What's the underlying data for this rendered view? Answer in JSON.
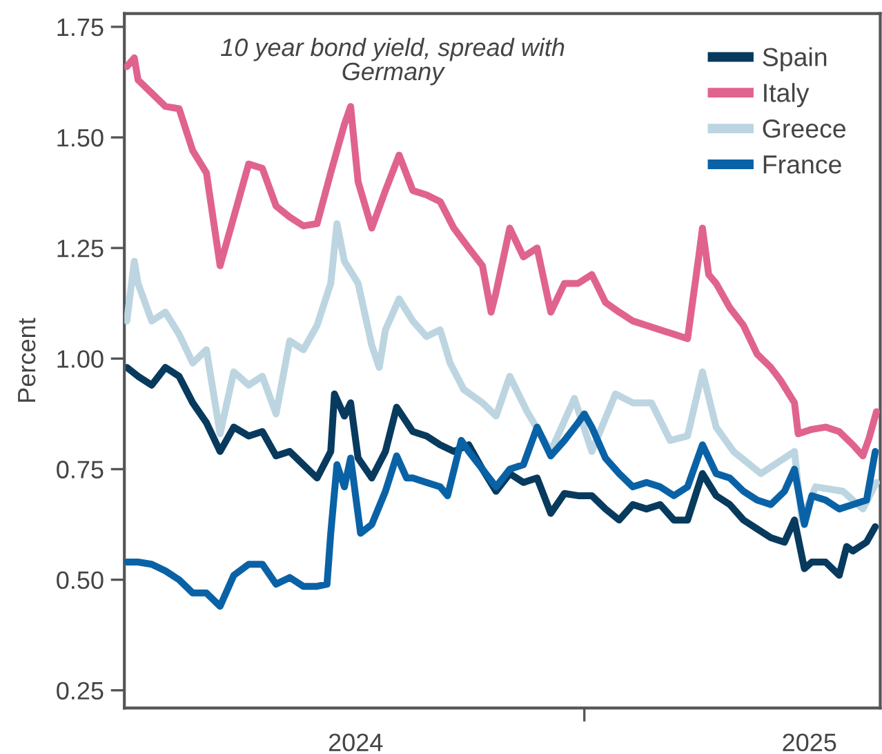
{
  "chart_data": {
    "type": "line",
    "title": "10 year bond yield, spread with Germany",
    "ylabel": "Percent",
    "xlim": [
      "2023-12-28",
      "2025-08-27"
    ],
    "xticks": [
      {
        "value": "2024-07-01",
        "label": "2024"
      },
      {
        "value": "2025-01-01",
        "label": null
      },
      {
        "value": "2025-07-01",
        "label": "2025"
      }
    ],
    "ylim": [
      0.21,
      1.78
    ],
    "yticks": [
      0.25,
      {
        "value": 0.5,
        "label": "0.50"
      },
      0.75,
      {
        "value": 1.0,
        "label": "1.00"
      },
      1.25,
      {
        "value": 1.5,
        "label": "1.50"
      },
      1.75
    ],
    "grid": false,
    "legend": "top right",
    "marker": "none",
    "line_style": "solid",
    "series": [
      {
        "name": "Spain",
        "color": "#083a5e",
        "x": [
          "2023-12-30",
          "2024-01-08",
          "2024-01-19",
          "2024-01-30",
          "2024-02-10",
          "2024-02-21",
          "2024-03-03",
          "2024-03-14",
          "2024-03-25",
          "2024-04-06",
          "2024-04-17",
          "2024-04-28",
          "2024-05-09",
          "2024-05-20",
          "2024-05-31",
          "2024-06-11",
          "2024-06-14",
          "2024-06-22",
          "2024-06-27",
          "2024-07-03",
          "2024-07-14",
          "2024-07-25",
          "2024-08-03",
          "2024-08-16",
          "2024-08-27",
          "2024-09-07",
          "2024-09-18",
          "2024-09-30",
          "2024-10-11",
          "2024-10-22",
          "2024-11-02",
          "2024-11-13",
          "2024-11-24",
          "2024-12-05",
          "2024-12-16",
          "2024-12-27",
          "2025-01-07",
          "2025-01-18",
          "2025-01-29",
          "2025-02-09",
          "2025-02-20",
          "2025-03-03",
          "2025-03-14",
          "2025-03-25",
          "2025-04-06",
          "2025-04-17",
          "2025-04-28",
          "2025-05-09",
          "2025-05-20",
          "2025-05-31",
          "2025-06-11",
          "2025-06-19",
          "2025-06-27",
          "2025-07-03",
          "2025-07-14",
          "2025-07-25",
          "2025-07-31",
          "2025-08-05",
          "2025-08-16",
          "2025-08-23"
        ],
        "values": [
          0.98,
          0.96,
          0.94,
          0.98,
          0.96,
          0.9,
          0.855,
          0.79,
          0.845,
          0.825,
          0.835,
          0.78,
          0.79,
          0.76,
          0.73,
          0.79,
          0.92,
          0.87,
          0.9,
          0.775,
          0.73,
          0.79,
          0.89,
          0.835,
          0.825,
          0.805,
          0.79,
          0.805,
          0.75,
          0.7,
          0.74,
          0.72,
          0.73,
          0.65,
          0.695,
          0.69,
          0.69,
          0.66,
          0.635,
          0.67,
          0.66,
          0.67,
          0.635,
          0.635,
          0.74,
          0.69,
          0.67,
          0.635,
          0.615,
          0.595,
          0.585,
          0.635,
          0.525,
          0.54,
          0.54,
          0.51,
          0.575,
          0.565,
          0.585,
          0.62
        ]
      },
      {
        "name": "Italy",
        "color": "#e0638f",
        "x": [
          "2023-12-30",
          "2024-01-05",
          "2024-01-08",
          "2024-01-19",
          "2024-01-30",
          "2024-02-10",
          "2024-02-21",
          "2024-03-03",
          "2024-03-14",
          "2024-03-25",
          "2024-04-06",
          "2024-04-17",
          "2024-04-28",
          "2024-05-09",
          "2024-05-20",
          "2024-05-31",
          "2024-06-11",
          "2024-06-22",
          "2024-06-27",
          "2024-07-03",
          "2024-07-14",
          "2024-07-25",
          "2024-08-05",
          "2024-08-16",
          "2024-08-27",
          "2024-09-07",
          "2024-09-18",
          "2024-09-30",
          "2024-10-11",
          "2024-10-18",
          "2024-10-22",
          "2024-11-02",
          "2024-11-13",
          "2024-11-24",
          "2024-12-05",
          "2024-12-16",
          "2024-12-27",
          "2025-01-07",
          "2025-01-18",
          "2025-01-29",
          "2025-02-09",
          "2025-02-20",
          "2025-03-03",
          "2025-03-14",
          "2025-03-25",
          "2025-04-03",
          "2025-04-06",
          "2025-04-11",
          "2025-04-17",
          "2025-04-28",
          "2025-05-09",
          "2025-05-20",
          "2025-05-31",
          "2025-06-08",
          "2025-06-19",
          "2025-06-22",
          "2025-07-03",
          "2025-07-14",
          "2025-07-25",
          "2025-08-05",
          "2025-08-13",
          "2025-08-18",
          "2025-08-24"
        ],
        "values": [
          1.66,
          1.68,
          1.63,
          1.6,
          1.57,
          1.565,
          1.47,
          1.42,
          1.21,
          1.32,
          1.44,
          1.43,
          1.345,
          1.32,
          1.3,
          1.305,
          1.42,
          1.53,
          1.57,
          1.4,
          1.295,
          1.38,
          1.46,
          1.38,
          1.37,
          1.355,
          1.295,
          1.25,
          1.21,
          1.105,
          1.15,
          1.295,
          1.23,
          1.25,
          1.105,
          1.17,
          1.17,
          1.19,
          1.127,
          1.105,
          1.085,
          1.075,
          1.065,
          1.055,
          1.045,
          1.23,
          1.295,
          1.19,
          1.17,
          1.115,
          1.075,
          1.01,
          0.98,
          0.95,
          0.9,
          0.83,
          0.84,
          0.845,
          0.835,
          0.805,
          0.78,
          0.82,
          0.88
        ]
      },
      {
        "name": "Greece",
        "color": "#bcd5e1",
        "x": [
          "2023-12-30",
          "2024-01-05",
          "2024-01-08",
          "2024-01-19",
          "2024-01-30",
          "2024-02-10",
          "2024-02-21",
          "2024-03-03",
          "2024-03-14",
          "2024-03-25",
          "2024-04-06",
          "2024-04-17",
          "2024-04-28",
          "2024-05-09",
          "2024-05-20",
          "2024-05-31",
          "2024-06-11",
          "2024-06-16",
          "2024-06-22",
          "2024-07-03",
          "2024-07-14",
          "2024-07-20",
          "2024-07-25",
          "2024-08-05",
          "2024-08-16",
          "2024-08-27",
          "2024-09-07",
          "2024-09-15",
          "2024-09-26",
          "2024-10-11",
          "2024-10-22",
          "2024-11-02",
          "2024-11-16",
          "2024-12-05",
          "2024-12-24",
          "2025-01-07",
          "2025-01-26",
          "2025-02-09",
          "2025-02-24",
          "2025-03-11",
          "2025-03-25",
          "2025-04-06",
          "2025-04-17",
          "2025-05-01",
          "2025-05-23",
          "2025-06-19",
          "2025-06-25",
          "2025-07-06",
          "2025-07-28",
          "2025-08-13",
          "2025-08-24"
        ],
        "values": [
          1.085,
          1.22,
          1.17,
          1.085,
          1.105,
          1.055,
          0.99,
          1.02,
          0.83,
          0.97,
          0.94,
          0.96,
          0.875,
          1.04,
          1.02,
          1.075,
          1.17,
          1.305,
          1.22,
          1.17,
          1.03,
          0.98,
          1.065,
          1.135,
          1.085,
          1.05,
          1.065,
          0.99,
          0.93,
          0.9,
          0.87,
          0.96,
          0.88,
          0.79,
          0.91,
          0.79,
          0.92,
          0.9,
          0.9,
          0.815,
          0.825,
          0.97,
          0.845,
          0.79,
          0.74,
          0.79,
          0.635,
          0.71,
          0.7,
          0.66,
          0.72
        ]
      },
      {
        "name": "France",
        "color": "#0a62a6",
        "x": [
          "2023-12-30",
          "2024-01-08",
          "2024-01-19",
          "2024-01-30",
          "2024-02-10",
          "2024-02-21",
          "2024-03-03",
          "2024-03-14",
          "2024-03-25",
          "2024-04-06",
          "2024-04-17",
          "2024-04-28",
          "2024-05-09",
          "2024-05-20",
          "2024-05-31",
          "2024-06-08",
          "2024-06-11",
          "2024-06-16",
          "2024-06-22",
          "2024-06-27",
          "2024-07-05",
          "2024-07-14",
          "2024-07-25",
          "2024-08-03",
          "2024-08-11",
          "2024-08-16",
          "2024-08-27",
          "2024-09-07",
          "2024-09-13",
          "2024-09-24",
          "2024-09-30",
          "2024-10-11",
          "2024-10-22",
          "2024-11-02",
          "2024-11-13",
          "2024-11-24",
          "2024-12-05",
          "2024-12-16",
          "2024-12-27",
          "2025-01-01",
          "2025-01-07",
          "2025-01-18",
          "2025-01-29",
          "2025-02-09",
          "2025-02-20",
          "2025-03-03",
          "2025-03-14",
          "2025-03-25",
          "2025-04-06",
          "2025-04-17",
          "2025-04-28",
          "2025-05-09",
          "2025-05-20",
          "2025-05-31",
          "2025-06-11",
          "2025-06-19",
          "2025-06-27",
          "2025-07-03",
          "2025-07-14",
          "2025-07-25",
          "2025-08-05",
          "2025-08-16",
          "2025-08-23"
        ],
        "values": [
          0.54,
          0.54,
          0.535,
          0.52,
          0.5,
          0.47,
          0.47,
          0.44,
          0.51,
          0.535,
          0.535,
          0.49,
          0.505,
          0.485,
          0.485,
          0.49,
          0.605,
          0.76,
          0.71,
          0.775,
          0.605,
          0.625,
          0.7,
          0.78,
          0.73,
          0.73,
          0.72,
          0.71,
          0.69,
          0.815,
          0.79,
          0.75,
          0.71,
          0.75,
          0.76,
          0.845,
          0.78,
          0.815,
          0.855,
          0.875,
          0.845,
          0.775,
          0.74,
          0.71,
          0.72,
          0.71,
          0.69,
          0.71,
          0.805,
          0.74,
          0.73,
          0.7,
          0.68,
          0.67,
          0.7,
          0.75,
          0.625,
          0.69,
          0.68,
          0.66,
          0.67,
          0.68,
          0.79
        ]
      }
    ]
  }
}
